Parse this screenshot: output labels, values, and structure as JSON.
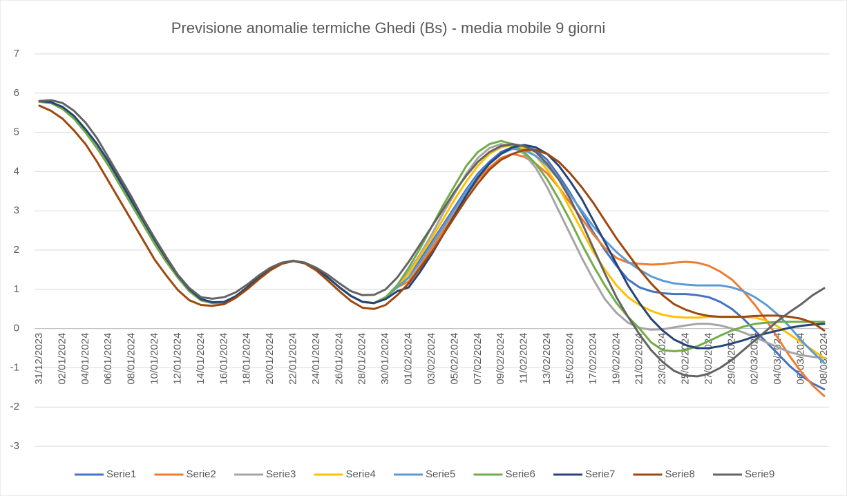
{
  "chart_data": {
    "type": "line",
    "title": "Previsione anomalie termiche Ghedi (Bs) - media mobile 9 giorni",
    "categories": [
      "31/12/2023",
      null,
      "02/01/2024",
      null,
      "04/01/2024",
      null,
      "06/01/2024",
      null,
      "08/01/2024",
      null,
      "10/01/2024",
      null,
      "12/01/2024",
      null,
      "14/01/2024",
      null,
      "16/01/2024",
      null,
      "18/01/2024",
      null,
      "20/01/2024",
      null,
      "22/01/2024",
      null,
      "24/01/2024",
      null,
      "26/01/2024",
      null,
      "28/01/2024",
      null,
      "30/01/2024",
      null,
      "01/02/2024",
      null,
      "03/02/2024",
      null,
      "05/02/2024",
      null,
      "07/02/2024",
      null,
      "09/02/2024",
      null,
      "11/02/2024",
      null,
      "13/02/2024",
      null,
      "15/02/2024",
      null,
      "17/02/2024",
      null,
      "19/02/2024",
      null,
      "21/02/2024",
      null,
      "23/02/2024",
      null,
      "25/02/2024",
      null,
      "27/02/2024",
      null,
      "29/02/2024",
      null,
      "02/03/2024",
      null,
      "04/03/2024",
      null,
      "06/03/2024",
      null,
      "08/03/2024"
    ],
    "ylim": [
      -3,
      7
    ],
    "yticks": [
      -3,
      -2,
      -1,
      0,
      1,
      2,
      3,
      4,
      5,
      6,
      7
    ],
    "grid": true,
    "legend": "bottom",
    "series": [
      {
        "name": "Serie1",
        "color": "#4472c4",
        "values": [
          5.78,
          5.75,
          5.6,
          5.35,
          5.0,
          4.6,
          4.15,
          3.65,
          3.15,
          2.65,
          2.15,
          1.7,
          1.3,
          0.95,
          0.72,
          0.65,
          0.66,
          0.82,
          1.05,
          1.3,
          1.5,
          1.66,
          1.72,
          1.68,
          1.52,
          1.3,
          1.05,
          0.83,
          0.68,
          0.65,
          0.8,
          1.05,
          1.3,
          1.75,
          2.2,
          2.65,
          3.1,
          3.55,
          3.95,
          4.25,
          4.5,
          4.62,
          4.65,
          4.55,
          4.3,
          3.9,
          3.45,
          2.95,
          2.45,
          2.0,
          1.6,
          1.25,
          1.05,
          0.95,
          0.9,
          0.88,
          0.88,
          0.85,
          0.8,
          0.68,
          0.5,
          0.25,
          -0.05,
          -0.35,
          -0.65,
          -0.95,
          -1.2,
          -1.4,
          -1.55
        ]
      },
      {
        "name": "Serie2",
        "color": "#ed7d31",
        "values": [
          5.78,
          5.75,
          5.6,
          5.35,
          5.0,
          4.6,
          4.15,
          3.65,
          3.15,
          2.65,
          2.15,
          1.7,
          1.3,
          0.95,
          0.72,
          0.65,
          0.66,
          0.82,
          1.05,
          1.3,
          1.5,
          1.66,
          1.72,
          1.68,
          1.52,
          1.3,
          1.05,
          0.83,
          0.68,
          0.65,
          0.8,
          1.05,
          1.2,
          1.6,
          2.05,
          2.5,
          2.95,
          3.4,
          3.8,
          4.1,
          4.35,
          4.45,
          4.38,
          4.2,
          3.95,
          3.6,
          3.2,
          2.8,
          2.4,
          2.05,
          1.8,
          1.68,
          1.65,
          1.63,
          1.64,
          1.68,
          1.7,
          1.68,
          1.6,
          1.45,
          1.25,
          0.95,
          0.6,
          0.2,
          -0.25,
          -0.7,
          -1.1,
          -1.45,
          -1.72
        ]
      },
      {
        "name": "Serie3",
        "color": "#a5a5a5",
        "values": [
          5.78,
          5.75,
          5.6,
          5.35,
          5.0,
          4.6,
          4.15,
          3.65,
          3.15,
          2.65,
          2.15,
          1.7,
          1.3,
          0.95,
          0.72,
          0.65,
          0.66,
          0.82,
          1.05,
          1.3,
          1.5,
          1.66,
          1.72,
          1.68,
          1.52,
          1.3,
          1.05,
          0.83,
          0.68,
          0.65,
          0.8,
          1.05,
          1.45,
          1.9,
          2.4,
          2.95,
          3.45,
          3.95,
          4.35,
          4.6,
          4.7,
          4.65,
          4.45,
          4.1,
          3.6,
          3.0,
          2.4,
          1.8,
          1.25,
          0.75,
          0.4,
          0.15,
          0.02,
          -0.03,
          -0.02,
          0.03,
          0.08,
          0.12,
          0.12,
          0.08,
          0.0,
          -0.1,
          -0.22,
          -0.35,
          -0.48,
          -0.6,
          -0.68,
          -0.72,
          -0.75
        ]
      },
      {
        "name": "Serie4",
        "color": "#ffc000",
        "values": [
          5.78,
          5.75,
          5.6,
          5.35,
          5.0,
          4.6,
          4.15,
          3.65,
          3.15,
          2.65,
          2.15,
          1.7,
          1.3,
          0.95,
          0.72,
          0.65,
          0.66,
          0.82,
          1.05,
          1.3,
          1.5,
          1.66,
          1.72,
          1.68,
          1.52,
          1.3,
          1.05,
          0.83,
          0.68,
          0.65,
          0.8,
          1.05,
          1.4,
          1.85,
          2.3,
          2.8,
          3.3,
          3.75,
          4.15,
          4.45,
          4.62,
          4.68,
          4.6,
          4.4,
          4.05,
          3.6,
          3.05,
          2.5,
          1.95,
          1.5,
          1.1,
          0.8,
          0.6,
          0.45,
          0.35,
          0.3,
          0.28,
          0.28,
          0.3,
          0.3,
          0.3,
          0.3,
          0.28,
          0.2,
          0.05,
          -0.15,
          -0.35,
          -0.55,
          -0.75
        ]
      },
      {
        "name": "Serie5",
        "color": "#5b9bd5",
        "values": [
          5.78,
          5.75,
          5.6,
          5.35,
          5.0,
          4.6,
          4.15,
          3.65,
          3.15,
          2.65,
          2.15,
          1.7,
          1.3,
          0.95,
          0.72,
          0.65,
          0.66,
          0.82,
          1.05,
          1.3,
          1.5,
          1.66,
          1.72,
          1.68,
          1.52,
          1.3,
          1.05,
          0.83,
          0.68,
          0.65,
          0.8,
          1.05,
          1.3,
          1.7,
          2.15,
          2.6,
          3.05,
          3.5,
          3.9,
          4.2,
          4.45,
          4.58,
          4.55,
          4.4,
          4.15,
          3.8,
          3.4,
          3.0,
          2.6,
          2.25,
          1.95,
          1.7,
          1.5,
          1.33,
          1.22,
          1.15,
          1.12,
          1.1,
          1.1,
          1.1,
          1.05,
          0.95,
          0.8,
          0.6,
          0.35,
          0.05,
          -0.3,
          -0.6,
          -0.88
        ]
      },
      {
        "name": "Serie6",
        "color": "#70ad47",
        "values": [
          5.78,
          5.75,
          5.6,
          5.35,
          5.0,
          4.6,
          4.15,
          3.65,
          3.15,
          2.65,
          2.15,
          1.7,
          1.3,
          0.95,
          0.72,
          0.65,
          0.66,
          0.82,
          1.05,
          1.3,
          1.5,
          1.66,
          1.72,
          1.68,
          1.52,
          1.3,
          1.05,
          0.83,
          0.68,
          0.65,
          0.8,
          1.1,
          1.55,
          2.05,
          2.6,
          3.15,
          3.65,
          4.15,
          4.5,
          4.7,
          4.78,
          4.7,
          4.5,
          4.2,
          3.8,
          3.3,
          2.75,
          2.15,
          1.6,
          1.1,
          0.65,
          0.3,
          0.0,
          -0.35,
          -0.55,
          -0.58,
          -0.55,
          -0.45,
          -0.32,
          -0.18,
          -0.05,
          0.05,
          0.12,
          0.15,
          0.17,
          0.17,
          0.17,
          0.17,
          0.17
        ]
      },
      {
        "name": "Serie7",
        "color": "#264478",
        "values": [
          5.8,
          5.77,
          5.65,
          5.42,
          5.08,
          4.7,
          4.25,
          3.75,
          3.25,
          2.75,
          2.25,
          1.78,
          1.35,
          1.0,
          0.75,
          0.67,
          0.68,
          0.82,
          1.05,
          1.3,
          1.5,
          1.66,
          1.72,
          1.68,
          1.52,
          1.3,
          1.05,
          0.83,
          0.68,
          0.65,
          0.75,
          0.95,
          1.05,
          1.45,
          1.9,
          2.4,
          2.9,
          3.4,
          3.85,
          4.2,
          4.45,
          4.62,
          4.68,
          4.62,
          4.45,
          4.15,
          3.75,
          3.3,
          2.75,
          2.2,
          1.65,
          1.1,
          0.65,
          0.25,
          -0.05,
          -0.28,
          -0.42,
          -0.5,
          -0.5,
          -0.45,
          -0.38,
          -0.3,
          -0.2,
          -0.12,
          -0.05,
          0.02,
          0.07,
          0.1,
          0.12
        ]
      },
      {
        "name": "Serie8",
        "color": "#9e480e",
        "values": [
          5.68,
          5.55,
          5.35,
          5.05,
          4.7,
          4.25,
          3.75,
          3.25,
          2.75,
          2.25,
          1.75,
          1.35,
          0.98,
          0.72,
          0.6,
          0.58,
          0.62,
          0.78,
          1.0,
          1.25,
          1.48,
          1.65,
          1.72,
          1.66,
          1.48,
          1.22,
          0.95,
          0.7,
          0.53,
          0.5,
          0.6,
          0.85,
          1.15,
          1.55,
          1.95,
          2.4,
          2.85,
          3.3,
          3.7,
          4.05,
          4.3,
          4.45,
          4.55,
          4.55,
          4.45,
          4.25,
          3.95,
          3.6,
          3.2,
          2.75,
          2.3,
          1.9,
          1.5,
          1.15,
          0.85,
          0.62,
          0.48,
          0.38,
          0.32,
          0.3,
          0.3,
          0.3,
          0.32,
          0.33,
          0.33,
          0.3,
          0.25,
          0.15,
          -0.05
        ]
      },
      {
        "name": "Serie9",
        "color": "#636363",
        "values": [
          5.8,
          5.82,
          5.75,
          5.55,
          5.25,
          4.85,
          4.35,
          3.85,
          3.35,
          2.8,
          2.3,
          1.82,
          1.37,
          1.03,
          0.8,
          0.76,
          0.8,
          0.92,
          1.12,
          1.35,
          1.55,
          1.68,
          1.73,
          1.68,
          1.55,
          1.37,
          1.15,
          0.95,
          0.85,
          0.86,
          1.0,
          1.3,
          1.7,
          2.15,
          2.6,
          3.05,
          3.5,
          3.9,
          4.25,
          4.5,
          4.65,
          4.7,
          4.65,
          4.5,
          4.2,
          3.8,
          3.3,
          2.7,
          2.05,
          1.4,
          0.8,
          0.3,
          -0.15,
          -0.55,
          -0.85,
          -1.08,
          -1.2,
          -1.22,
          -1.15,
          -1.0,
          -0.8,
          -0.55,
          -0.3,
          -0.05,
          0.2,
          0.42,
          0.62,
          0.85,
          1.03
        ]
      }
    ]
  }
}
